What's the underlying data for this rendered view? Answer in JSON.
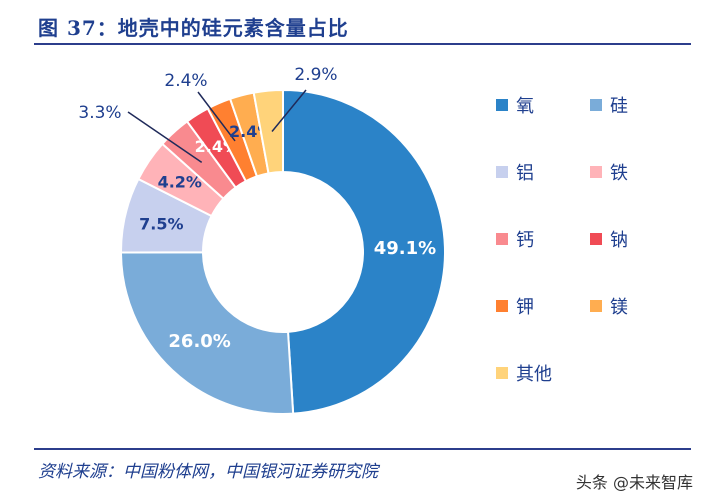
{
  "title": "图 37：地壳中的硅元素含量占比",
  "source": "资料来源：中国粉体网，中国银河证券研究院",
  "watermark": "头条 @未来智库",
  "chart_data": {
    "type": "pie",
    "variant": "donut",
    "legend_position": "right",
    "categories": [
      "氧",
      "硅",
      "铝",
      "铁",
      "钙",
      "钠",
      "钾",
      "镁",
      "其他"
    ],
    "values": [
      49.1,
      26.0,
      7.5,
      4.2,
      3.3,
      2.4,
      2.4,
      2.4,
      2.9
    ],
    "labels": [
      "49.1%",
      "26.0%",
      "7.5%",
      "4.2%",
      "3.3%",
      "2.4%",
      "2.4%",
      "2.4%",
      "2.9%"
    ],
    "colors": [
      "#2b83c8",
      "#7aacd9",
      "#c7d0ee",
      "#ffb3b8",
      "#f98a8f",
      "#f04b55",
      "#ff8030",
      "#ffad50",
      "#ffd37a"
    ]
  }
}
